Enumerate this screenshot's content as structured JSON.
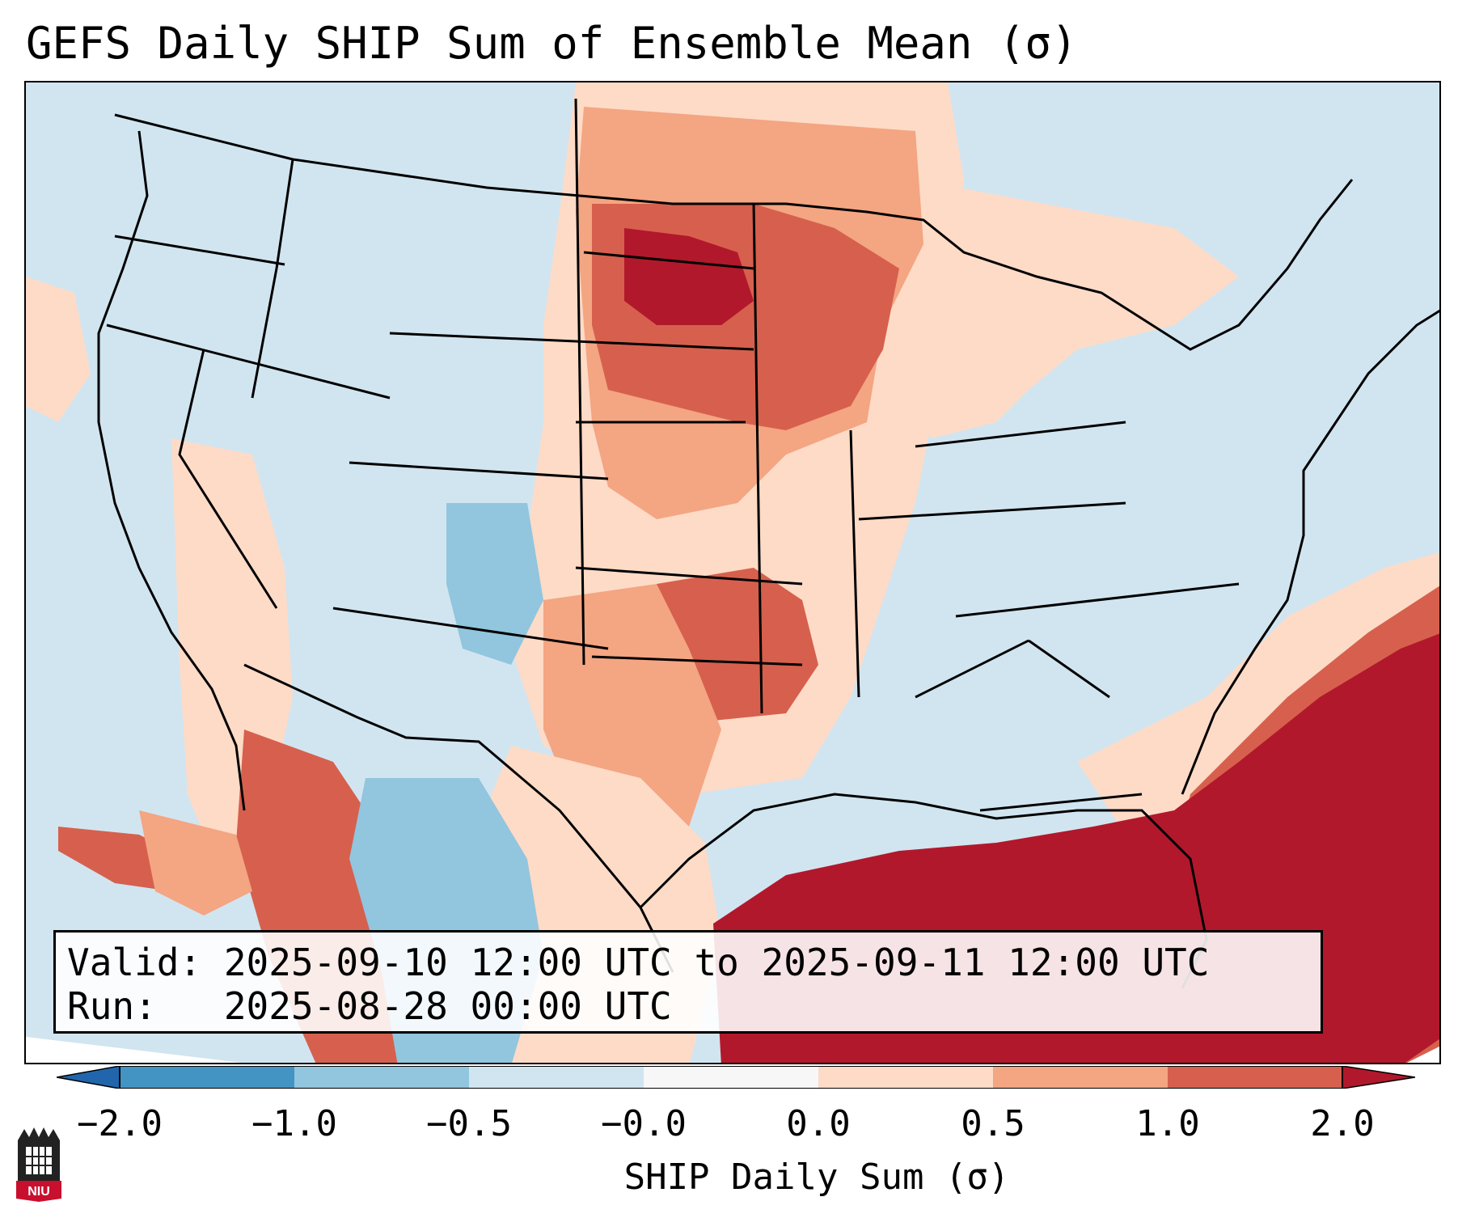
{
  "title": "GEFS Daily SHIP Sum of Ensemble Mean (σ)",
  "info": {
    "valid": "Valid: 2025-09-10 12:00 UTC to 2025-09-11 12:00 UTC",
    "run": "Run:   2025-08-28 00:00 UTC"
  },
  "colorbar": {
    "label": "SHIP Daily Sum (σ)",
    "ticks": [
      "−2.0",
      "−1.0",
      "−0.5",
      "−0.0",
      "0.0",
      "0.5",
      "1.0",
      "2.0"
    ],
    "colors": [
      "#4393c3",
      "#92c5de",
      "#d1e5f0",
      "#f7f7f7",
      "#fddbc7",
      "#f4a582",
      "#d6604d",
      "#b2182b"
    ],
    "under_color": "#2166ac",
    "over_color": "#b2182b"
  },
  "logo": {
    "text": "NIU"
  },
  "palette": {
    "ocean": "#d1e5f0",
    "strong_red": "#b2182b",
    "red": "#d6604d",
    "salmon": "#f4a582",
    "light_salmon": "#fddbc7",
    "light_blue": "#d1e5f0",
    "mid_blue": "#92c5de",
    "blue": "#4393c3"
  }
}
